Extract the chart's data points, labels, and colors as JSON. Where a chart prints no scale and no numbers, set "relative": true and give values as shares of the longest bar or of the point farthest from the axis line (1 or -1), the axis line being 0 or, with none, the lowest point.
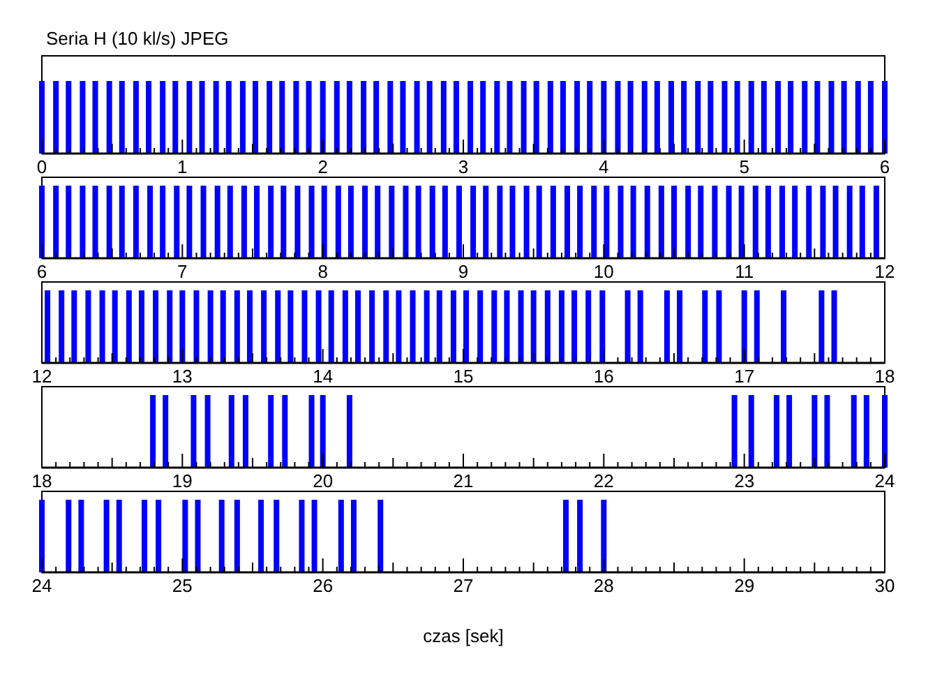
{
  "chart_data": [
    {
      "type": "bar",
      "title": "Seria H (10 kl/s) JPEG",
      "relative": true,
      "color": "#0000ff",
      "xlim": [
        0,
        6
      ],
      "x": [
        0,
        0.1,
        0.19,
        0.29,
        0.38,
        0.48,
        0.57,
        0.67,
        0.76,
        0.86,
        0.95,
        1.05,
        1.14,
        1.24,
        1.33,
        1.43,
        1.52,
        1.62,
        1.71,
        1.81,
        1.9,
        2.0,
        2.1,
        2.19,
        2.29,
        2.38,
        2.48,
        2.57,
        2.67,
        2.76,
        2.86,
        2.95,
        3.05,
        3.14,
        3.24,
        3.33,
        3.43,
        3.52,
        3.62,
        3.71,
        3.81,
        3.9,
        4.0,
        4.1,
        4.19,
        4.29,
        4.38,
        4.48,
        4.57,
        4.67,
        4.76,
        4.86,
        4.95,
        5.05,
        5.14,
        5.24,
        5.33,
        5.43,
        5.52,
        5.62,
        5.71,
        5.81,
        5.9,
        6.0
      ],
      "values": [
        1,
        1,
        1,
        1,
        1,
        1,
        1,
        1,
        1,
        1,
        1,
        1,
        1,
        1,
        1,
        1,
        1,
        1,
        1,
        1,
        1,
        1,
        1,
        1,
        1,
        1,
        1,
        1,
        1,
        1,
        1,
        1,
        1,
        1,
        1,
        1,
        1,
        1,
        1,
        1,
        1,
        1,
        1,
        1,
        1,
        1,
        1,
        1,
        1,
        1,
        1,
        1,
        1,
        1,
        1,
        1,
        1,
        1,
        1,
        1,
        1,
        1,
        1,
        1
      ],
      "xticks": [
        0,
        {
          "value": 0.1,
          "label": null
        },
        {
          "value": 0.2,
          "label": null
        },
        {
          "value": 0.3,
          "label": null
        },
        {
          "value": 0.4,
          "label": null
        },
        {
          "value": 0.5,
          "label": null
        },
        {
          "value": 0.6,
          "label": null
        },
        {
          "value": 0.7,
          "label": null
        },
        {
          "value": 0.8,
          "label": null
        },
        {
          "value": 0.9,
          "label": null
        },
        1,
        {
          "value": 1.1,
          "label": null
        },
        {
          "value": 1.2,
          "label": null
        },
        {
          "value": 1.3,
          "label": null
        },
        {
          "value": 1.4,
          "label": null
        },
        {
          "value": 1.5,
          "label": null
        },
        {
          "value": 1.6,
          "label": null
        },
        {
          "value": 1.7,
          "label": null
        },
        {
          "value": 1.8,
          "label": null
        },
        {
          "value": 1.9,
          "label": null
        },
        2,
        {
          "value": 2.1,
          "label": null
        },
        {
          "value": 2.2,
          "label": null
        },
        {
          "value": 2.3,
          "label": null
        },
        {
          "value": 2.4,
          "label": null
        },
        {
          "value": 2.5,
          "label": null
        },
        {
          "value": 2.6,
          "label": null
        },
        {
          "value": 2.7,
          "label": null
        },
        {
          "value": 2.8,
          "label": null
        },
        {
          "value": 2.9,
          "label": null
        },
        3,
        {
          "value": 3.1,
          "label": null
        },
        {
          "value": 3.2,
          "label": null
        },
        {
          "value": 3.3,
          "label": null
        },
        {
          "value": 3.4,
          "label": null
        },
        {
          "value": 3.5,
          "label": null
        },
        {
          "value": 3.6,
          "label": null
        },
        {
          "value": 3.7,
          "label": null
        },
        {
          "value": 3.8,
          "label": null
        },
        {
          "value": 3.9,
          "label": null
        },
        4,
        {
          "value": 4.1,
          "label": null
        },
        {
          "value": 4.2,
          "label": null
        },
        {
          "value": 4.3,
          "label": null
        },
        {
          "value": 4.4,
          "label": null
        },
        {
          "value": 4.5,
          "label": null
        },
        {
          "value": 4.6,
          "label": null
        },
        {
          "value": 4.7,
          "label": null
        },
        {
          "value": 4.8,
          "label": null
        },
        {
          "value": 4.9,
          "label": null
        },
        5,
        {
          "value": 5.1,
          "label": null
        },
        {
          "value": 5.2,
          "label": null
        },
        {
          "value": 5.3,
          "label": null
        },
        {
          "value": 5.4,
          "label": null
        },
        {
          "value": 5.5,
          "label": null
        },
        {
          "value": 5.6,
          "label": null
        },
        {
          "value": 5.7,
          "label": null
        },
        {
          "value": 5.8,
          "label": null
        },
        {
          "value": 5.9,
          "label": null
        },
        6
      ]
    },
    {
      "type": "bar",
      "relative": true,
      "color": "#0000ff",
      "xlim": [
        6,
        12
      ],
      "x": [
        6.0,
        6.1,
        6.19,
        6.29,
        6.38,
        6.48,
        6.57,
        6.67,
        6.77,
        6.86,
        6.96,
        7.05,
        7.15,
        7.25,
        7.34,
        7.44,
        7.53,
        7.63,
        7.72,
        7.82,
        7.92,
        8.01,
        8.11,
        8.2,
        8.3,
        8.39,
        8.49,
        8.59,
        8.68,
        8.78,
        8.87,
        8.97,
        9.07,
        9.16,
        9.26,
        9.35,
        9.45,
        9.54,
        9.64,
        9.74,
        9.83,
        9.93,
        10.02,
        10.12,
        10.21,
        10.31,
        10.41,
        10.5,
        10.6,
        10.69,
        10.79,
        10.89,
        10.98,
        11.08,
        11.17,
        11.27,
        11.36,
        11.46,
        11.56,
        11.65,
        11.75,
        11.84,
        11.94
      ],
      "values": [
        1,
        1,
        1,
        1,
        1,
        1,
        1,
        1,
        1,
        1,
        1,
        1,
        1,
        1,
        1,
        1,
        1,
        1,
        1,
        1,
        1,
        1,
        1,
        1,
        1,
        1,
        1,
        1,
        1,
        1,
        1,
        1,
        1,
        1,
        1,
        1,
        1,
        1,
        1,
        1,
        1,
        1,
        1,
        1,
        1,
        1,
        1,
        1,
        1,
        1,
        1,
        1,
        1,
        1,
        1,
        1,
        1,
        1,
        1,
        1,
        1,
        1,
        1
      ],
      "xticks": [
        6,
        {
          "value": 6.1,
          "label": null
        },
        {
          "value": 6.2,
          "label": null
        },
        {
          "value": 6.3,
          "label": null
        },
        {
          "value": 6.4,
          "label": null
        },
        {
          "value": 6.5,
          "label": null
        },
        {
          "value": 6.6,
          "label": null
        },
        {
          "value": 6.7,
          "label": null
        },
        {
          "value": 6.8,
          "label": null
        },
        {
          "value": 6.9,
          "label": null
        },
        7,
        {
          "value": 7.1,
          "label": null
        },
        {
          "value": 7.2,
          "label": null
        },
        {
          "value": 7.3,
          "label": null
        },
        {
          "value": 7.4,
          "label": null
        },
        {
          "value": 7.5,
          "label": null
        },
        {
          "value": 7.6,
          "label": null
        },
        {
          "value": 7.7,
          "label": null
        },
        {
          "value": 7.8,
          "label": null
        },
        {
          "value": 7.9,
          "label": null
        },
        8,
        {
          "value": 8.1,
          "label": null
        },
        {
          "value": 8.2,
          "label": null
        },
        {
          "value": 8.3,
          "label": null
        },
        {
          "value": 8.4,
          "label": null
        },
        {
          "value": 8.5,
          "label": null
        },
        {
          "value": 8.6,
          "label": null
        },
        {
          "value": 8.7,
          "label": null
        },
        {
          "value": 8.8,
          "label": null
        },
        {
          "value": 8.9,
          "label": null
        },
        9,
        {
          "value": 9.1,
          "label": null
        },
        {
          "value": 9.2,
          "label": null
        },
        {
          "value": 9.3,
          "label": null
        },
        {
          "value": 9.4,
          "label": null
        },
        {
          "value": 9.5,
          "label": null
        },
        {
          "value": 9.6,
          "label": null
        },
        {
          "value": 9.7,
          "label": null
        },
        {
          "value": 9.8,
          "label": null
        },
        {
          "value": 9.9,
          "label": null
        },
        10,
        {
          "value": 10.1,
          "label": null
        },
        {
          "value": 10.2,
          "label": null
        },
        {
          "value": 10.3,
          "label": null
        },
        {
          "value": 10.4,
          "label": null
        },
        {
          "value": 10.5,
          "label": null
        },
        {
          "value": 10.6,
          "label": null
        },
        {
          "value": 10.7,
          "label": null
        },
        {
          "value": 10.8,
          "label": null
        },
        {
          "value": 10.9,
          "label": null
        },
        11,
        {
          "value": 11.1,
          "label": null
        },
        {
          "value": 11.2,
          "label": null
        },
        {
          "value": 11.3,
          "label": null
        },
        {
          "value": 11.4,
          "label": null
        },
        {
          "value": 11.5,
          "label": null
        },
        {
          "value": 11.6,
          "label": null
        },
        {
          "value": 11.7,
          "label": null
        },
        {
          "value": 11.8,
          "label": null
        },
        {
          "value": 11.9,
          "label": null
        },
        12
      ]
    },
    {
      "type": "bar",
      "relative": true,
      "color": "#0000ff",
      "xlim": [
        12,
        18
      ],
      "x": [
        12.04,
        12.14,
        12.23,
        12.33,
        12.43,
        12.52,
        12.62,
        12.71,
        12.81,
        12.91,
        13.0,
        13.1,
        13.2,
        13.29,
        13.39,
        13.48,
        13.58,
        13.68,
        13.77,
        13.87,
        13.97,
        14.06,
        14.16,
        14.25,
        14.35,
        14.45,
        14.54,
        14.64,
        14.74,
        14.83,
        14.93,
        15.02,
        15.12,
        15.22,
        15.31,
        15.41,
        15.5,
        15.6,
        15.7,
        15.79,
        15.89,
        15.99,
        16.17,
        16.26,
        16.45,
        16.54,
        16.72,
        16.82,
        17.0,
        17.09,
        17.28,
        17.55,
        17.64
      ],
      "values": [
        1,
        1,
        1,
        1,
        1,
        1,
        1,
        1,
        1,
        1,
        1,
        1,
        1,
        1,
        1,
        1,
        1,
        1,
        1,
        1,
        1,
        1,
        1,
        1,
        1,
        1,
        1,
        1,
        1,
        1,
        1,
        1,
        1,
        1,
        1,
        1,
        1,
        1,
        1,
        1,
        1,
        1,
        1,
        1,
        1,
        1,
        1,
        1,
        1,
        1,
        1,
        1,
        1
      ],
      "xticks": [
        12,
        {
          "value": 12.1,
          "label": null
        },
        {
          "value": 12.2,
          "label": null
        },
        {
          "value": 12.3,
          "label": null
        },
        {
          "value": 12.4,
          "label": null
        },
        {
          "value": 12.5,
          "label": null
        },
        {
          "value": 12.6,
          "label": null
        },
        {
          "value": 12.7,
          "label": null
        },
        {
          "value": 12.8,
          "label": null
        },
        {
          "value": 12.9,
          "label": null
        },
        13,
        {
          "value": 13.1,
          "label": null
        },
        {
          "value": 13.2,
          "label": null
        },
        {
          "value": 13.3,
          "label": null
        },
        {
          "value": 13.4,
          "label": null
        },
        {
          "value": 13.5,
          "label": null
        },
        {
          "value": 13.6,
          "label": null
        },
        {
          "value": 13.7,
          "label": null
        },
        {
          "value": 13.8,
          "label": null
        },
        {
          "value": 13.9,
          "label": null
        },
        14,
        {
          "value": 14.1,
          "label": null
        },
        {
          "value": 14.2,
          "label": null
        },
        {
          "value": 14.3,
          "label": null
        },
        {
          "value": 14.4,
          "label": null
        },
        {
          "value": 14.5,
          "label": null
        },
        {
          "value": 14.6,
          "label": null
        },
        {
          "value": 14.7,
          "label": null
        },
        {
          "value": 14.8,
          "label": null
        },
        {
          "value": 14.9,
          "label": null
        },
        15,
        {
          "value": 15.1,
          "label": null
        },
        {
          "value": 15.2,
          "label": null
        },
        {
          "value": 15.3,
          "label": null
        },
        {
          "value": 15.4,
          "label": null
        },
        {
          "value": 15.5,
          "label": null
        },
        {
          "value": 15.6,
          "label": null
        },
        {
          "value": 15.7,
          "label": null
        },
        {
          "value": 15.8,
          "label": null
        },
        {
          "value": 15.9,
          "label": null
        },
        16,
        {
          "value": 16.1,
          "label": null
        },
        {
          "value": 16.2,
          "label": null
        },
        {
          "value": 16.3,
          "label": null
        },
        {
          "value": 16.4,
          "label": null
        },
        {
          "value": 16.5,
          "label": null
        },
        {
          "value": 16.6,
          "label": null
        },
        {
          "value": 16.7,
          "label": null
        },
        {
          "value": 16.8,
          "label": null
        },
        {
          "value": 16.9,
          "label": null
        },
        17,
        {
          "value": 17.1,
          "label": null
        },
        {
          "value": 17.2,
          "label": null
        },
        {
          "value": 17.3,
          "label": null
        },
        {
          "value": 17.4,
          "label": null
        },
        {
          "value": 17.5,
          "label": null
        },
        {
          "value": 17.6,
          "label": null
        },
        {
          "value": 17.7,
          "label": null
        },
        {
          "value": 17.8,
          "label": null
        },
        {
          "value": 17.9,
          "label": null
        },
        18
      ]
    },
    {
      "type": "bar",
      "relative": true,
      "color": "#0000ff",
      "xlim": [
        18,
        24
      ],
      "x": [
        18.79,
        18.88,
        19.08,
        19.18,
        19.35,
        19.45,
        19.63,
        19.73,
        19.92,
        20.0,
        20.19,
        22.93,
        23.05,
        23.23,
        23.32,
        23.5,
        23.59,
        23.78,
        23.87,
        24.0
      ],
      "values": [
        1,
        1,
        1,
        1,
        1,
        1,
        1,
        1,
        1,
        1,
        1,
        1,
        1,
        1,
        1,
        1,
        1,
        1,
        1,
        1
      ],
      "xticks": [
        18,
        {
          "value": 18.1,
          "label": null
        },
        {
          "value": 18.2,
          "label": null
        },
        {
          "value": 18.3,
          "label": null
        },
        {
          "value": 18.4,
          "label": null
        },
        {
          "value": 18.5,
          "label": null
        },
        {
          "value": 18.6,
          "label": null
        },
        {
          "value": 18.7,
          "label": null
        },
        {
          "value": 18.8,
          "label": null
        },
        {
          "value": 18.9,
          "label": null
        },
        19,
        {
          "value": 19.1,
          "label": null
        },
        {
          "value": 19.2,
          "label": null
        },
        {
          "value": 19.3,
          "label": null
        },
        {
          "value": 19.4,
          "label": null
        },
        {
          "value": 19.5,
          "label": null
        },
        {
          "value": 19.6,
          "label": null
        },
        {
          "value": 19.7,
          "label": null
        },
        {
          "value": 19.8,
          "label": null
        },
        {
          "value": 19.9,
          "label": null
        },
        20,
        {
          "value": 20.1,
          "label": null
        },
        {
          "value": 20.2,
          "label": null
        },
        {
          "value": 20.3,
          "label": null
        },
        {
          "value": 20.4,
          "label": null
        },
        {
          "value": 20.5,
          "label": null
        },
        {
          "value": 20.6,
          "label": null
        },
        {
          "value": 20.7,
          "label": null
        },
        {
          "value": 20.8,
          "label": null
        },
        {
          "value": 20.9,
          "label": null
        },
        21,
        {
          "value": 21.1,
          "label": null
        },
        {
          "value": 21.2,
          "label": null
        },
        {
          "value": 21.3,
          "label": null
        },
        {
          "value": 21.4,
          "label": null
        },
        {
          "value": 21.5,
          "label": null
        },
        {
          "value": 21.6,
          "label": null
        },
        {
          "value": 21.7,
          "label": null
        },
        {
          "value": 21.8,
          "label": null
        },
        {
          "value": 21.9,
          "label": null
        },
        22,
        {
          "value": 22.1,
          "label": null
        },
        {
          "value": 22.2,
          "label": null
        },
        {
          "value": 22.3,
          "label": null
        },
        {
          "value": 22.4,
          "label": null
        },
        {
          "value": 22.5,
          "label": null
        },
        {
          "value": 22.6,
          "label": null
        },
        {
          "value": 22.7,
          "label": null
        },
        {
          "value": 22.8,
          "label": null
        },
        {
          "value": 22.9,
          "label": null
        },
        23,
        {
          "value": 23.1,
          "label": null
        },
        {
          "value": 23.2,
          "label": null
        },
        {
          "value": 23.3,
          "label": null
        },
        {
          "value": 23.4,
          "label": null
        },
        {
          "value": 23.5,
          "label": null
        },
        {
          "value": 23.6,
          "label": null
        },
        {
          "value": 23.7,
          "label": null
        },
        {
          "value": 23.8,
          "label": null
        },
        {
          "value": 23.9,
          "label": null
        },
        24
      ]
    },
    {
      "type": "bar",
      "relative": true,
      "color": "#0000ff",
      "xlim": [
        24,
        30
      ],
      "xlabel": "czas [sek]",
      "x": [
        24.0,
        24.19,
        24.28,
        24.46,
        24.55,
        24.73,
        24.83,
        25.02,
        25.11,
        25.28,
        25.39,
        25.56,
        25.67,
        25.85,
        25.94,
        26.13,
        26.22,
        26.41,
        27.73,
        27.83,
        28.0
      ],
      "values": [
        1,
        1,
        1,
        1,
        1,
        1,
        1,
        1,
        1,
        1,
        1,
        1,
        1,
        1,
        1,
        1,
        1,
        1,
        1,
        1,
        1
      ],
      "xticks": [
        24,
        {
          "value": 24.1,
          "label": null
        },
        {
          "value": 24.2,
          "label": null
        },
        {
          "value": 24.3,
          "label": null
        },
        {
          "value": 24.4,
          "label": null
        },
        {
          "value": 24.5,
          "label": null
        },
        {
          "value": 24.6,
          "label": null
        },
        {
          "value": 24.7,
          "label": null
        },
        {
          "value": 24.8,
          "label": null
        },
        {
          "value": 24.9,
          "label": null
        },
        25,
        {
          "value": 25.1,
          "label": null
        },
        {
          "value": 25.2,
          "label": null
        },
        {
          "value": 25.3,
          "label": null
        },
        {
          "value": 25.4,
          "label": null
        },
        {
          "value": 25.5,
          "label": null
        },
        {
          "value": 25.6,
          "label": null
        },
        {
          "value": 25.7,
          "label": null
        },
        {
          "value": 25.8,
          "label": null
        },
        {
          "value": 25.9,
          "label": null
        },
        26,
        {
          "value": 26.1,
          "label": null
        },
        {
          "value": 26.2,
          "label": null
        },
        {
          "value": 26.3,
          "label": null
        },
        {
          "value": 26.4,
          "label": null
        },
        {
          "value": 26.5,
          "label": null
        },
        {
          "value": 26.6,
          "label": null
        },
        {
          "value": 26.7,
          "label": null
        },
        {
          "value": 26.8,
          "label": null
        },
        {
          "value": 26.9,
          "label": null
        },
        27,
        {
          "value": 27.1,
          "label": null
        },
        {
          "value": 27.2,
          "label": null
        },
        {
          "value": 27.3,
          "label": null
        },
        {
          "value": 27.4,
          "label": null
        },
        {
          "value": 27.5,
          "label": null
        },
        {
          "value": 27.6,
          "label": null
        },
        {
          "value": 27.7,
          "label": null
        },
        {
          "value": 27.8,
          "label": null
        },
        {
          "value": 27.9,
          "label": null
        },
        28,
        {
          "value": 28.1,
          "label": null
        },
        {
          "value": 28.2,
          "label": null
        },
        {
          "value": 28.3,
          "label": null
        },
        {
          "value": 28.4,
          "label": null
        },
        {
          "value": 28.5,
          "label": null
        },
        {
          "value": 28.6,
          "label": null
        },
        {
          "value": 28.7,
          "label": null
        },
        {
          "value": 28.8,
          "label": null
        },
        {
          "value": 28.9,
          "label": null
        },
        29,
        {
          "value": 29.1,
          "label": null
        },
        {
          "value": 29.2,
          "label": null
        },
        {
          "value": 29.3,
          "label": null
        },
        {
          "value": 29.4,
          "label": null
        },
        {
          "value": 29.5,
          "label": null
        },
        {
          "value": 29.6,
          "label": null
        },
        {
          "value": 29.7,
          "label": null
        },
        {
          "value": 29.8,
          "label": null
        },
        {
          "value": 29.9,
          "label": null
        },
        30
      ]
    }
  ]
}
